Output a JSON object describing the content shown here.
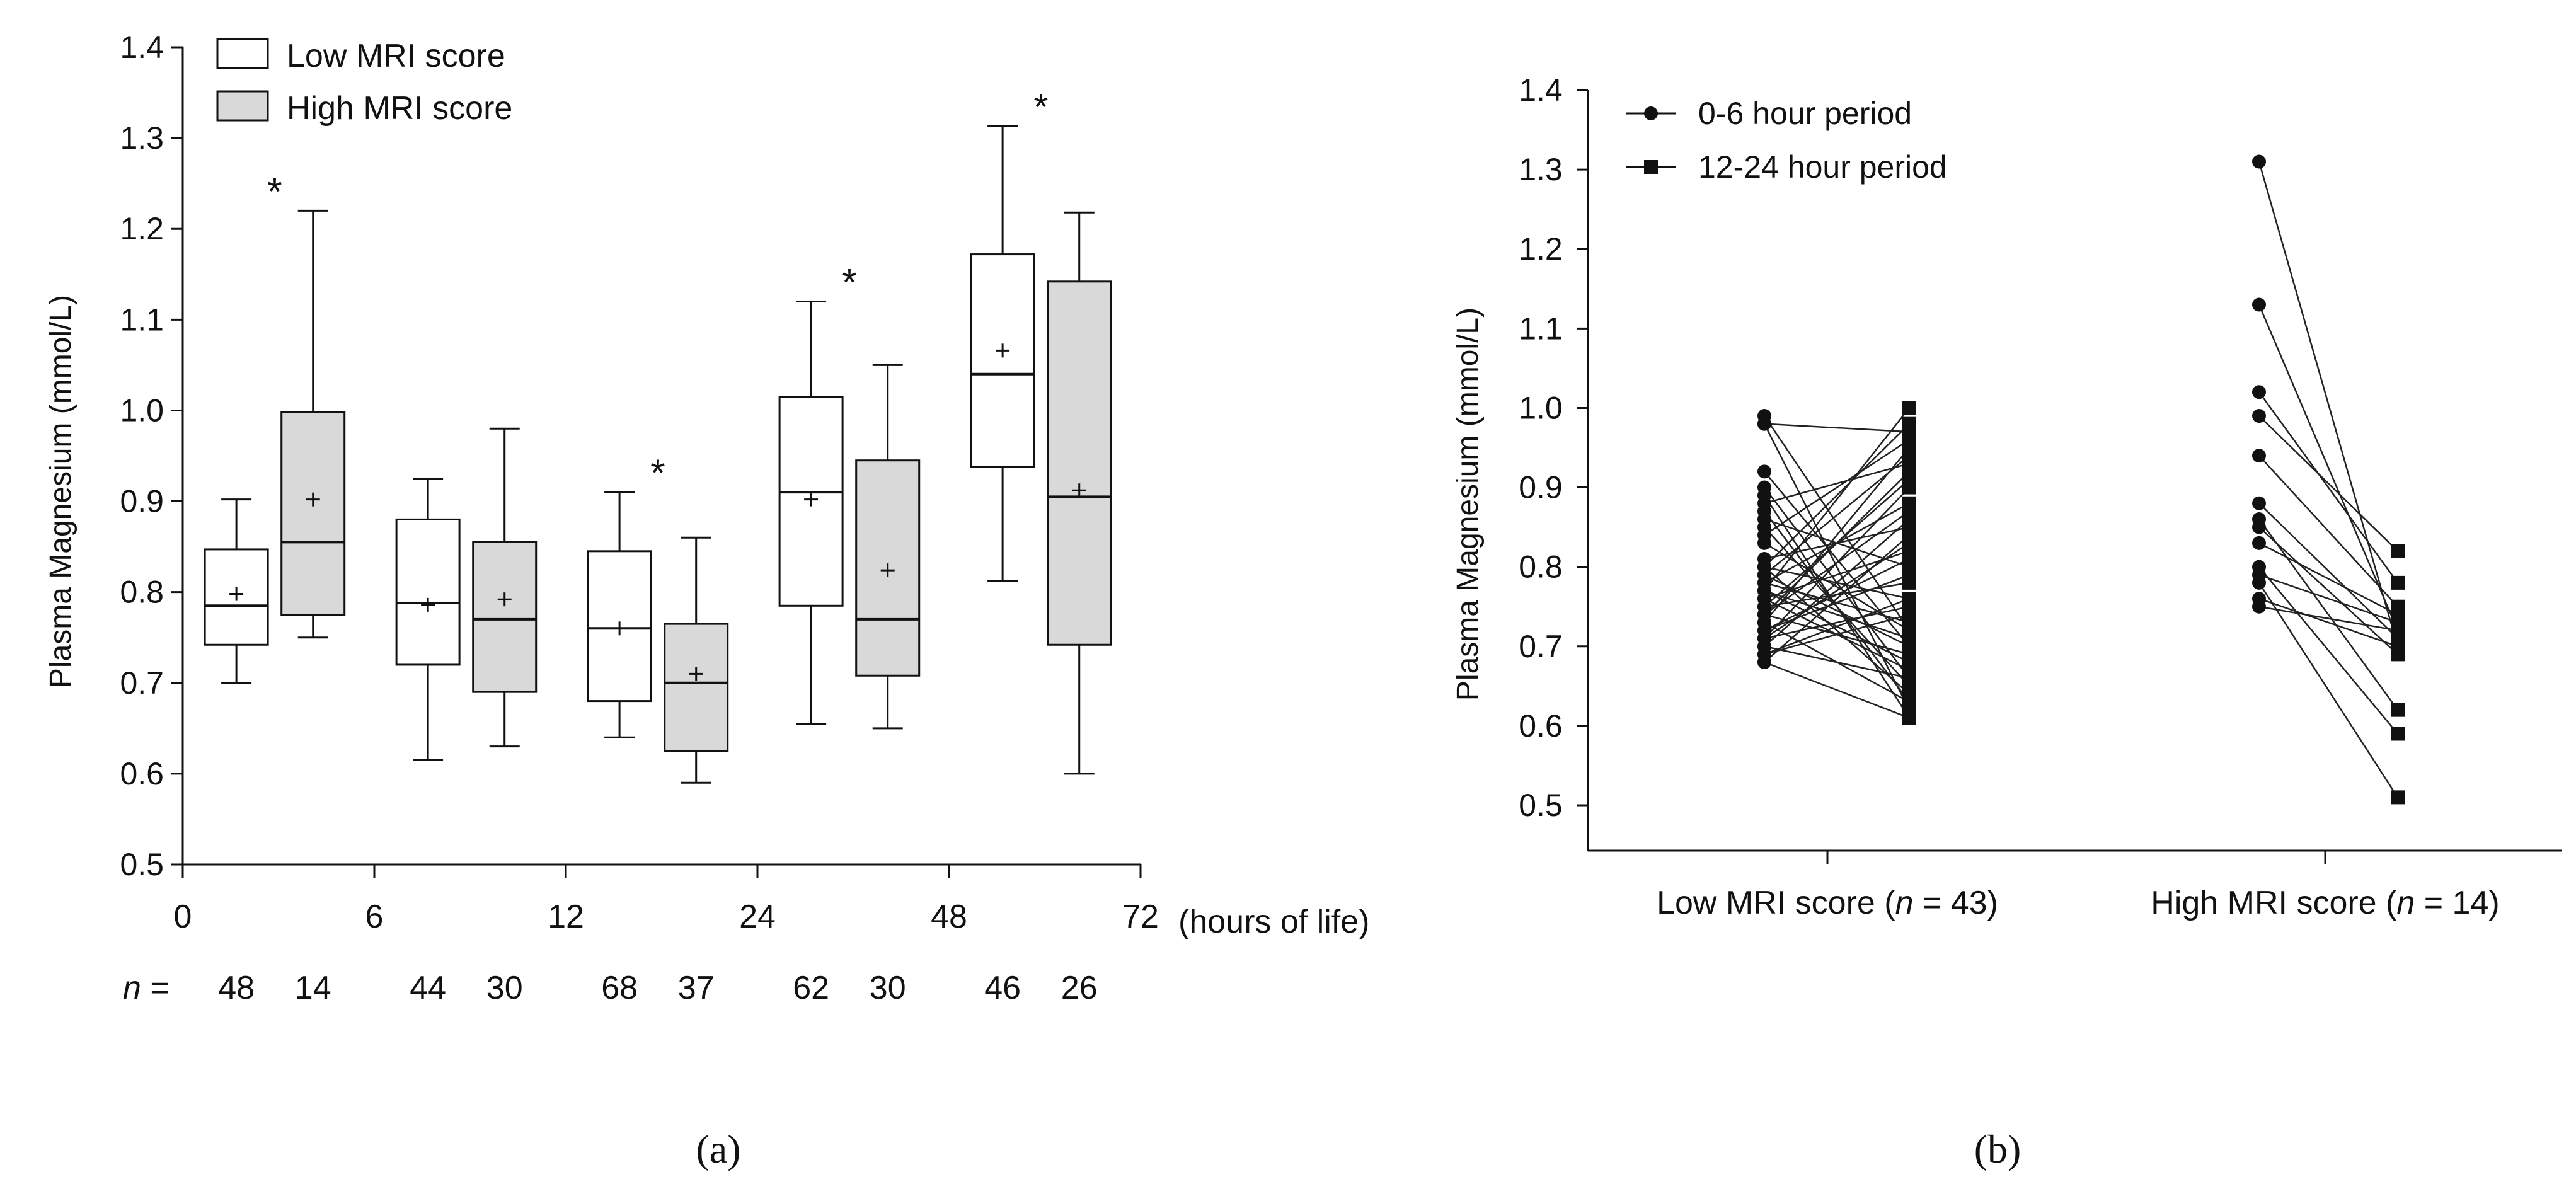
{
  "chart_data": [
    {
      "panel": "(a)",
      "type": "box",
      "ylabel": "Plasma Magnesium (mmol/L)",
      "ylim": [
        0.5,
        1.4
      ],
      "yticks": [
        "0.5",
        "0.6",
        "0.7",
        "0.8",
        "0.9",
        "1.0",
        "1.1",
        "1.2",
        "1.3",
        "1.4"
      ],
      "xticks": [
        "0",
        "6",
        "12",
        "24",
        "48",
        "72"
      ],
      "xunit": "(hours of life)",
      "n_prefix": "n =",
      "legend": {
        "placement": "top-left",
        "entries": [
          {
            "name": "Low MRI score",
            "color": "#ffffff"
          },
          {
            "name": "High MRI score",
            "color": "#d9d9d9"
          }
        ]
      },
      "groups": [
        {
          "interval": [
            0,
            6
          ],
          "significant": true,
          "boxes": [
            {
              "series": "Low MRI score",
              "n": "48",
              "whisker_low": 0.7,
              "q1": 0.742,
              "median": 0.785,
              "q3": 0.847,
              "whisker_high": 0.902,
              "mean": 0.798
            },
            {
              "series": "High MRI score",
              "n": "14",
              "whisker_low": 0.75,
              "q1": 0.775,
              "median": 0.855,
              "q3": 0.998,
              "whisker_high": 1.22,
              "mean": 0.902
            }
          ]
        },
        {
          "interval": [
            6,
            12
          ],
          "significant": false,
          "boxes": [
            {
              "series": "Low MRI score",
              "n": "44",
              "whisker_low": 0.615,
              "q1": 0.72,
              "median": 0.788,
              "q3": 0.88,
              "whisker_high": 0.925,
              "mean": 0.786
            },
            {
              "series": "High MRI score",
              "n": "30",
              "whisker_low": 0.63,
              "q1": 0.69,
              "median": 0.77,
              "q3": 0.855,
              "whisker_high": 0.98,
              "mean": 0.792
            }
          ]
        },
        {
          "interval": [
            12,
            24
          ],
          "significant": true,
          "boxes": [
            {
              "series": "Low MRI score",
              "n": "68",
              "whisker_low": 0.64,
              "q1": 0.68,
              "median": 0.76,
              "q3": 0.845,
              "whisker_high": 0.91,
              "mean": 0.76
            },
            {
              "series": "High MRI score",
              "n": "37",
              "whisker_low": 0.59,
              "q1": 0.625,
              "median": 0.7,
              "q3": 0.765,
              "whisker_high": 0.86,
              "mean": 0.71
            }
          ]
        },
        {
          "interval": [
            24,
            48
          ],
          "significant": true,
          "boxes": [
            {
              "series": "Low MRI score",
              "n": "62",
              "whisker_low": 0.655,
              "q1": 0.785,
              "median": 0.91,
              "q3": 1.015,
              "whisker_high": 1.12,
              "mean": 0.902
            },
            {
              "series": "High MRI score",
              "n": "30",
              "whisker_low": 0.65,
              "q1": 0.708,
              "median": 0.77,
              "q3": 0.945,
              "whisker_high": 1.05,
              "mean": 0.824
            }
          ]
        },
        {
          "interval": [
            48,
            72
          ],
          "significant": true,
          "boxes": [
            {
              "series": "Low MRI score",
              "n": "46",
              "whisker_low": 0.812,
              "q1": 0.938,
              "median": 1.04,
              "q3": 1.172,
              "whisker_high": 1.313,
              "mean": 1.066
            },
            {
              "series": "High MRI score",
              "n": "26",
              "whisker_low": 0.6,
              "q1": 0.742,
              "median": 0.905,
              "q3": 1.142,
              "whisker_high": 1.218,
              "mean": 0.912
            }
          ]
        }
      ],
      "significance_marker": "*"
    },
    {
      "panel": "(b)",
      "type": "paired-line",
      "ylabel": "Plasma Magnesium (mmol/L)",
      "ylim": [
        0.5,
        1.4
      ],
      "yticks": [
        "0.5",
        "0.6",
        "0.7",
        "0.8",
        "0.9",
        "1.0",
        "1.1",
        "1.2",
        "1.3",
        "1.4"
      ],
      "legend": {
        "placement": "top-left",
        "entries": [
          {
            "name": "0-6 hour period",
            "marker": "circle"
          },
          {
            "name": "12-24 hour period",
            "marker": "square"
          }
        ]
      },
      "groups": [
        {
          "label": "Low MRI score (",
          "n_label": "n",
          "n_value": " = 43)",
          "pairs": [
            [
              0.99,
              0.72
            ],
            [
              0.98,
              0.97
            ],
            [
              0.98,
              0.62
            ],
            [
              0.92,
              0.7
            ],
            [
              0.9,
              0.66
            ],
            [
              0.89,
              0.61
            ],
            [
              0.88,
              0.93
            ],
            [
              0.87,
              0.63
            ],
            [
              0.86,
              0.8
            ],
            [
              0.85,
              0.65
            ],
            [
              0.84,
              0.96
            ],
            [
              0.83,
              0.72
            ],
            [
              0.81,
              0.85
            ],
            [
              0.8,
              0.76
            ],
            [
              0.8,
              0.64
            ],
            [
              0.79,
              0.94
            ],
            [
              0.79,
              0.7
            ],
            [
              0.78,
              0.88
            ],
            [
              0.78,
              0.73
            ],
            [
              0.77,
              1.0
            ],
            [
              0.77,
              0.68
            ],
            [
              0.76,
              0.82
            ],
            [
              0.76,
              0.67
            ],
            [
              0.75,
              0.91
            ],
            [
              0.75,
              0.78
            ],
            [
              0.74,
              0.69
            ],
            [
              0.74,
              0.87
            ],
            [
              0.73,
              0.95
            ],
            [
              0.73,
              0.63
            ],
            [
              0.72,
              0.79
            ],
            [
              0.72,
              0.81
            ],
            [
              0.71,
              0.75
            ],
            [
              0.71,
              0.9
            ],
            [
              0.7,
              0.66
            ],
            [
              0.7,
              0.86
            ],
            [
              0.69,
              0.76
            ],
            [
              0.69,
              0.74
            ],
            [
              0.68,
              0.84
            ],
            [
              0.68,
              0.61
            ],
            [
              0.8,
              0.98
            ],
            [
              0.77,
              0.71
            ],
            [
              0.74,
              0.92
            ],
            [
              0.71,
              0.83
            ]
          ]
        },
        {
          "label": "High MRI score (",
          "n_label": "n",
          "n_value": " = 14)",
          "pairs": [
            [
              1.31,
              0.7
            ],
            [
              1.13,
              0.72
            ],
            [
              1.02,
              0.78
            ],
            [
              0.99,
              0.82
            ],
            [
              0.94,
              0.75
            ],
            [
              0.88,
              0.71
            ],
            [
              0.86,
              0.62
            ],
            [
              0.85,
              0.69
            ],
            [
              0.83,
              0.74
            ],
            [
              0.8,
              0.59
            ],
            [
              0.79,
              0.73
            ],
            [
              0.78,
              0.51
            ],
            [
              0.76,
              0.7
            ],
            [
              0.75,
              0.72
            ]
          ]
        }
      ]
    }
  ]
}
